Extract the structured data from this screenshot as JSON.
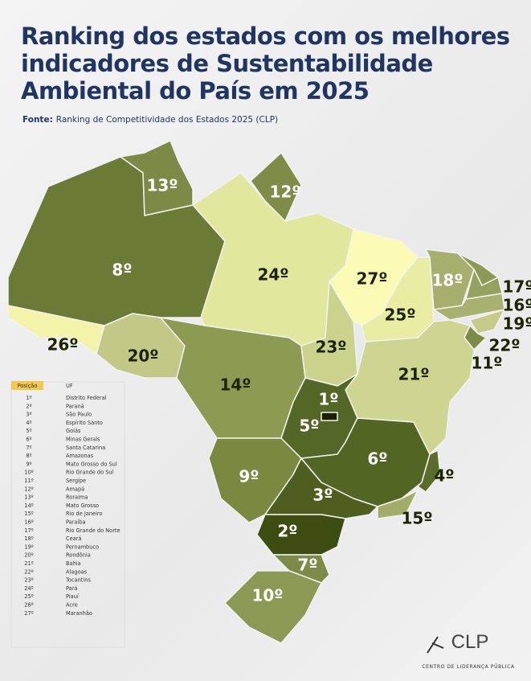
{
  "title": [
    "Ranking dos estados com os melhores",
    "indicadores de Sustentabilidade",
    "Ambiental do País em 2025"
  ],
  "source": {
    "label": "Fonte:",
    "text": "Ranking de Competitividade dos Estados 2025 (CLP)"
  },
  "map_labels": [
    "13º",
    "12º",
    "8º",
    "24º",
    "27º",
    "18º",
    "17º",
    "16º",
    "19º",
    "22º",
    "11º",
    "25º",
    "26º",
    "20º",
    "23º",
    "21º",
    "14º",
    "1º",
    "5º",
    "6º",
    "4º",
    "9º",
    "3º",
    "15º",
    "2º",
    "7º",
    "10º"
  ],
  "table": {
    "header": [
      "Posição",
      "UF"
    ],
    "rows": [
      [
        "1º",
        "Distrito Federal"
      ],
      [
        "2º",
        "Paraná"
      ],
      [
        "3º",
        "São Paulo"
      ],
      [
        "4º",
        "Espírito Santo"
      ],
      [
        "5º",
        "Goiás"
      ],
      [
        "6º",
        "Minas Gerais"
      ],
      [
        "7º",
        "Santa Catarina"
      ],
      [
        "8º",
        "Amazonas"
      ],
      [
        "9º",
        "Mato Grosso do Sul"
      ],
      [
        "10º",
        "Rio Grande do Sul"
      ],
      [
        "11º",
        "Sergipe"
      ],
      [
        "12º",
        "Amapá"
      ],
      [
        "13º",
        "Roraima"
      ],
      [
        "14º",
        "Mato Grosso"
      ],
      [
        "15º",
        "Rio de Janeiro"
      ],
      [
        "16º",
        "Paraíba"
      ],
      [
        "17º",
        "Rio Grande do Norte"
      ],
      [
        "18º",
        "Ceará"
      ],
      [
        "19º",
        "Pernambuco"
      ],
      [
        "20º",
        "Rondônia"
      ],
      [
        "21º",
        "Bahia"
      ],
      [
        "22º",
        "Alagoas"
      ],
      [
        "23º",
        "Tocantins"
      ],
      [
        "24º",
        "Pará"
      ],
      [
        "25º",
        "Piauí"
      ],
      [
        "26º",
        "Acre"
      ],
      [
        "27º",
        "Maranhão"
      ]
    ]
  },
  "logo": {
    "name": "CLP",
    "subtitle": "CENTRO DE LIDERANÇA PÚBLICA"
  }
}
